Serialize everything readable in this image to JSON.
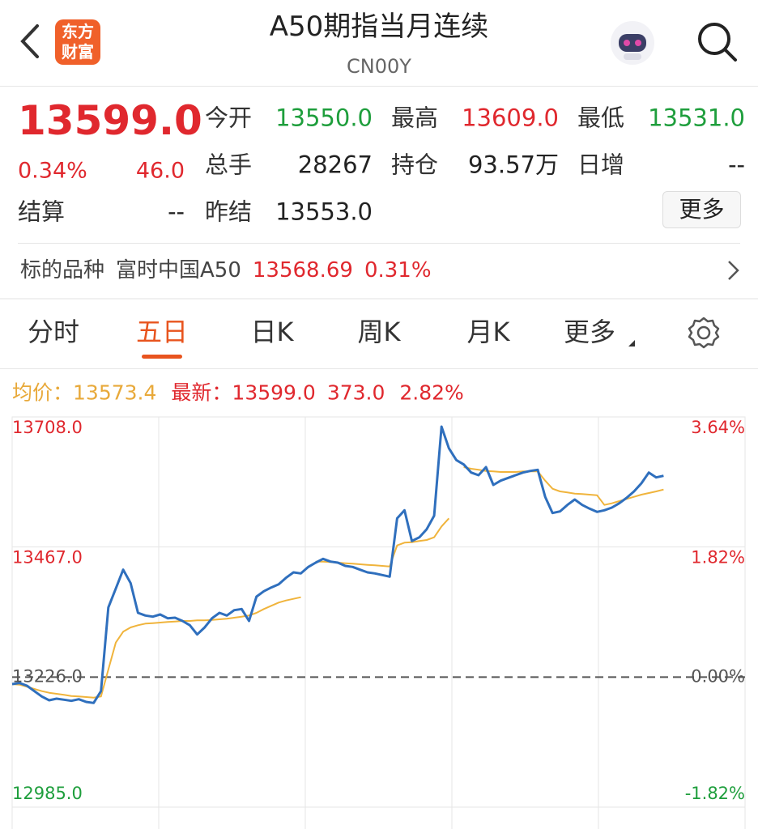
{
  "header": {
    "logo": [
      "东方",
      "财富"
    ],
    "title": "A50期指当月连续",
    "code": "CN00Y"
  },
  "quote": {
    "price": "13599.0",
    "change_pct": "0.34%",
    "change": "46.0",
    "color": "#e0282e",
    "fields": [
      {
        "label": "今开",
        "value": "13550.0",
        "color": "#1e9e3c"
      },
      {
        "label": "最高",
        "value": "13609.0",
        "color": "#e0282e"
      },
      {
        "label": "最低",
        "value": "13531.0",
        "color": "#1e9e3c"
      },
      {
        "label": "总手",
        "value": "28267",
        "color": "#222222"
      },
      {
        "label": "持仓",
        "value": "93.57万",
        "color": "#222222"
      },
      {
        "label": "日增",
        "value": "--",
        "color": "#222222"
      }
    ],
    "settle": {
      "label": "结算",
      "value": "--"
    },
    "prev_settle": {
      "label": "昨结",
      "value": "13553.0"
    },
    "more": "更多"
  },
  "underlying": {
    "label": "标的品种",
    "name": "富时中国A50",
    "price": "13568.69",
    "change_pct": "0.31%"
  },
  "tabs": {
    "items": [
      "分时",
      "五日",
      "日K",
      "周K",
      "月K",
      "更多"
    ],
    "active": 1
  },
  "legend": {
    "avg_label": "均价：",
    "avg": "13573.4",
    "last_label": "最新：",
    "last": "13599.0",
    "change": "373.0",
    "change_pct": "2.82%"
  },
  "chart_data": {
    "type": "line",
    "ylim": [
      12985,
      13708
    ],
    "yticks": [
      {
        "value": 12985,
        "label": "12985.0"
      },
      {
        "value": 13226,
        "label": "13226.0"
      },
      {
        "value": 13467,
        "label": "13467.0"
      },
      {
        "value": 13708,
        "label": "13708.0"
      }
    ],
    "y2lim": [
      -1.82,
      3.64
    ],
    "y2ticks": [
      {
        "value": -1.82,
        "label": "-1.82%"
      },
      {
        "value": 0,
        "label": "0.00%"
      },
      {
        "value": 1.82,
        "label": "1.82%"
      },
      {
        "value": 3.64,
        "label": "3.64%"
      }
    ],
    "series": [
      {
        "name": "最新",
        "color": "#2f6fbd",
        "values": [
          13213,
          13215,
          13210,
          13200,
          13190,
          13183,
          13186,
          13184,
          13182,
          13185,
          13180,
          13178,
          13200,
          13355,
          13390,
          13425,
          13400,
          13345,
          13340,
          13338,
          13342,
          13335,
          13336,
          13330,
          13322,
          13305,
          13318,
          13335,
          13345,
          13340,
          13350,
          13352,
          13330,
          13375,
          13385,
          13392,
          13398,
          13410,
          13420,
          13418,
          13430,
          13438,
          13445,
          13440,
          13438,
          13432,
          13430,
          13425,
          13420,
          13418,
          13415,
          13412,
          13520,
          13535,
          13478,
          13485,
          13500,
          13525,
          13690,
          13650,
          13628,
          13620,
          13605,
          13600,
          13615,
          13582,
          13590,
          13595,
          13600,
          13605,
          13608,
          13610,
          13560,
          13530,
          13533,
          13545,
          13555,
          13545,
          13538,
          13532,
          13535,
          13540,
          13548,
          13558,
          13570,
          13585,
          13605,
          13596,
          13599,
          null,
          null,
          null,
          null,
          null,
          null,
          null,
          null,
          null,
          null,
          null
        ]
      },
      {
        "name": "均价",
        "color": "#f0b43c",
        "values": [
          13213,
          13212,
          13208,
          13204,
          13200,
          13197,
          13195,
          13193,
          13191,
          13190,
          13189,
          13188,
          13190,
          13240,
          13290,
          13310,
          13318,
          13322,
          13325,
          13326,
          13327,
          13328,
          13329,
          13330,
          13330,
          13331,
          13331,
          13332,
          13333,
          13334,
          13336,
          13338,
          13340,
          13345,
          13352,
          13358,
          13364,
          13368,
          13371,
          13374,
          null,
          13440,
          13440,
          13439,
          13438,
          13437,
          13436,
          13435,
          13434,
          13433,
          13432,
          13431,
          13470,
          13475,
          13476,
          13478,
          13480,
          13485,
          13505,
          13520,
          null,
          13615,
          13612,
          13610,
          13608,
          13607,
          13606,
          13606,
          13606,
          13607,
          13607,
          13607,
          13590,
          13575,
          13570,
          13568,
          13566,
          13565,
          13564,
          13563,
          13545,
          13548,
          13552,
          13556,
          13560,
          13564,
          13567,
          13570,
          13573.4,
          null,
          null,
          null,
          null,
          null,
          null,
          null,
          null,
          null,
          null,
          null
        ]
      }
    ]
  }
}
